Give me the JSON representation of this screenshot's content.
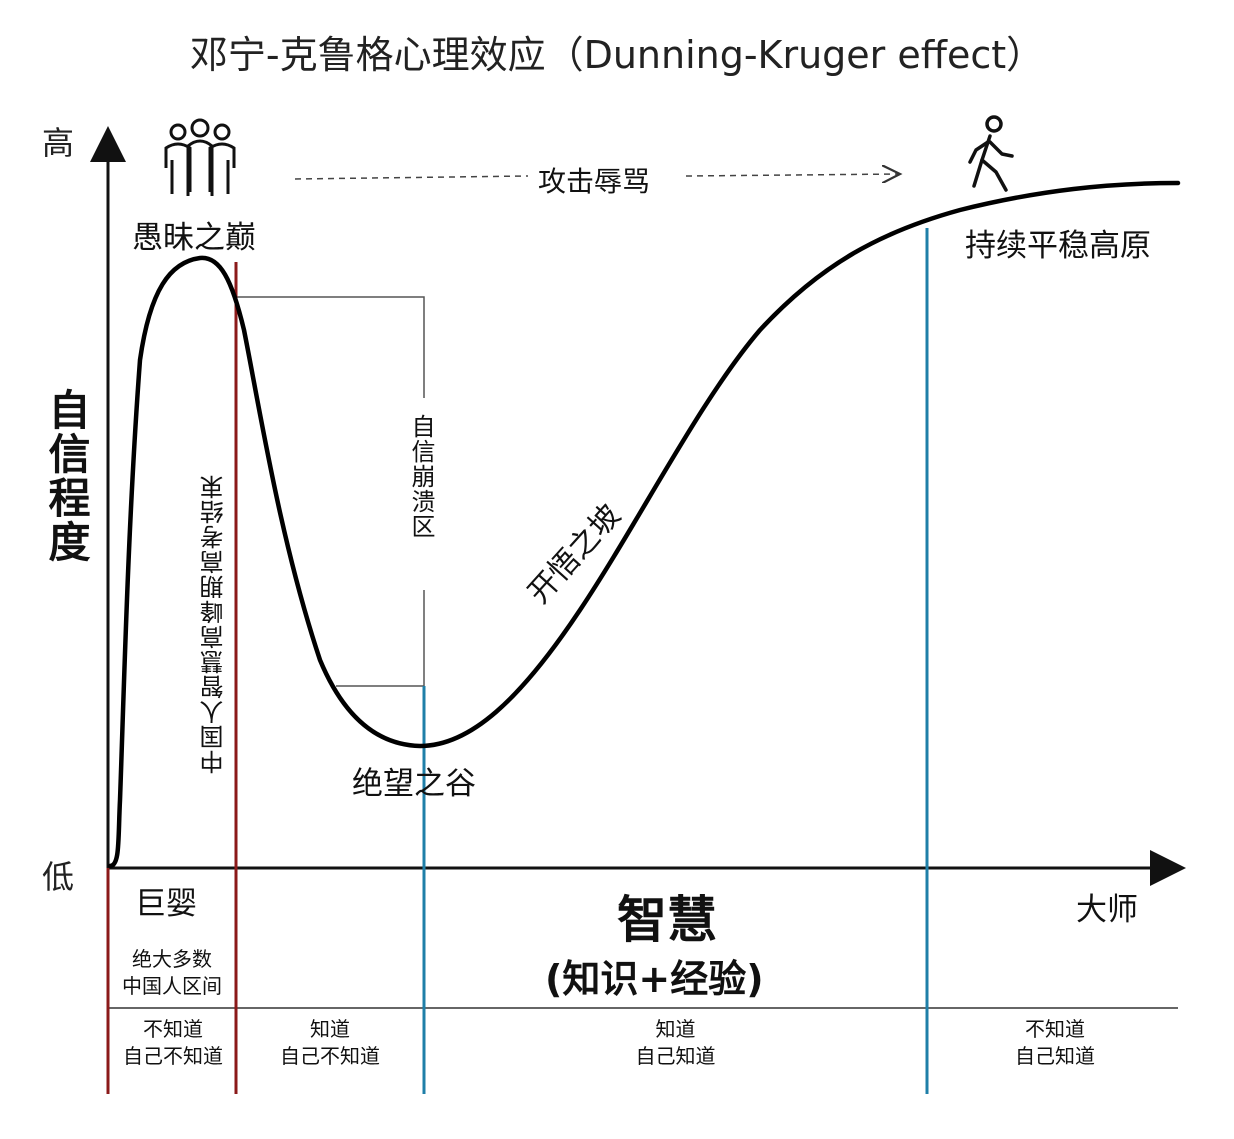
{
  "title": "邓宁-克鲁格心理效应（Dunning-Kruger effect）",
  "y_axis": {
    "label": "自信程度",
    "high": "高",
    "low": "低"
  },
  "x_axis": {
    "label": "智慧",
    "sublabel": "(知识+经验)",
    "start": "巨婴",
    "end": "大师"
  },
  "curve_labels": {
    "peak": "愚昧之巅",
    "valley": "绝望之谷",
    "slope": "开悟之坡",
    "plateau": "持续平稳高原",
    "collapse_zone": "自信崩溃区",
    "attack": "攻击辱骂"
  },
  "markers": {
    "china_peak": "中国人智慧高峰期高考结束",
    "majority_line1": "绝大多数",
    "majority_line2": "中国人区间"
  },
  "stages": [
    {
      "line1": "不知道",
      "line2": "自己不知道"
    },
    {
      "line1": "知道",
      "line2": "自己不知道"
    },
    {
      "line1": "知道",
      "line2": "自己知道"
    },
    {
      "line1": "不知道",
      "line2": "自己知道"
    }
  ],
  "icons": {
    "peak": "group-of-people-icon",
    "plateau": "walking-person-icon"
  },
  "colors": {
    "red_line": "#8b1a1a",
    "blue_line": "#1f7fa8",
    "curve": "#000000"
  }
}
